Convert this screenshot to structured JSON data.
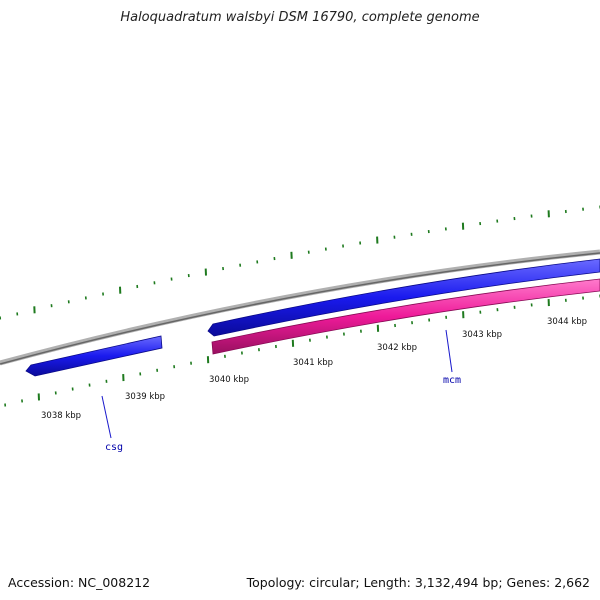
{
  "title": "Haloquadratum walsbyi DSM 16790, complete genome",
  "footer": {
    "accession": "Accession: NC_008212",
    "topology": "Topology: circular; Length: 3,132,494 bp; Genes: 2,662"
  },
  "colors": {
    "backbone": "#8a8a8a",
    "forward_gene": "#1a1aee",
    "reverse_gene": "#ee1a99",
    "tick": "#1e7a1e",
    "label_line": "#1a1acc"
  },
  "scale_labels": [
    "3038 kbp",
    "3039 kbp",
    "3040 kbp",
    "3041 kbp",
    "3042 kbp",
    "3043 kbp",
    "3044 kbp"
  ],
  "genes": [
    {
      "name": "csg",
      "strand": "forward"
    },
    {
      "name": "mcm",
      "strand": "forward"
    },
    {
      "name": "",
      "strand": "reverse"
    }
  ]
}
